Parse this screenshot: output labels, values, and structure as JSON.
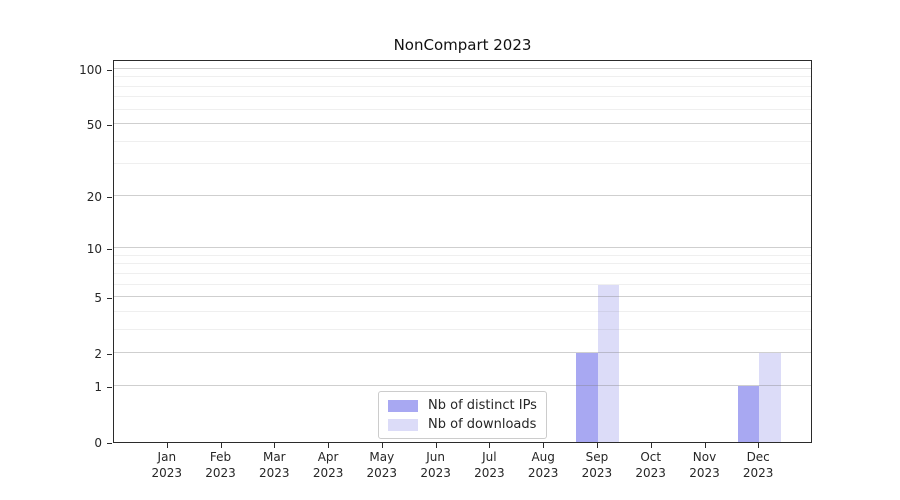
{
  "chart_data": {
    "type": "bar",
    "title": "NonCompart 2023",
    "categories": [
      "Jan 2023",
      "Feb 2023",
      "Mar 2023",
      "Apr 2023",
      "May 2023",
      "Jun 2023",
      "Jul 2023",
      "Aug 2023",
      "Sep 2023",
      "Oct 2023",
      "Nov 2023",
      "Dec 2023"
    ],
    "series": [
      {
        "name": "Nb of distinct IPs",
        "color": "#a8a8f2",
        "values": [
          0,
          0,
          0,
          0,
          0,
          0,
          0,
          0,
          2,
          0,
          0,
          1
        ]
      },
      {
        "name": "Nb of downloads",
        "color": "#dcdcf8",
        "values": [
          0,
          0,
          0,
          0,
          0,
          0,
          0,
          0,
          6,
          0,
          0,
          2
        ]
      }
    ],
    "xlabel": "",
    "ylabel": "",
    "yscale": "log1p",
    "ylim": [
      0,
      113
    ],
    "y_major_ticks": [
      0,
      1,
      2,
      5,
      10,
      20,
      50,
      100
    ],
    "y_minor_gridlines": [
      3,
      4,
      6,
      7,
      8,
      9,
      30,
      40,
      60,
      70,
      80,
      90
    ],
    "grid": "horizontal",
    "legend_position": "inside-bottom-center"
  }
}
